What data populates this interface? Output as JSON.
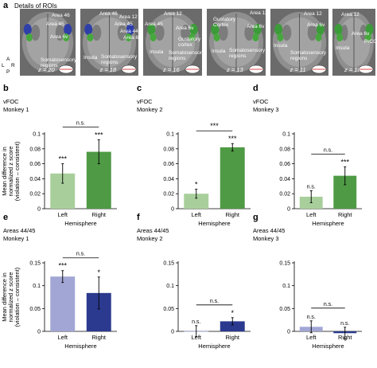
{
  "panel_a": {
    "letter": "a",
    "title": "Details of ROIs",
    "orientation": {
      "l": "L",
      "r": "R",
      "a": "A",
      "p": "P"
    },
    "tiles": [
      {
        "z": "z = 20",
        "labels": [
          "Area 46",
          "Area 45",
          "Area 6v",
          "Somatosensory regions"
        ]
      },
      {
        "z": "z = 18",
        "labels": [
          "Area 46",
          "Area 12",
          "Area 45",
          "Area 44",
          "Area 6v",
          "Insula",
          "Somatosensory regions"
        ]
      },
      {
        "z": "z = 16",
        "labels": [
          "Area 12",
          "Area 45",
          "Area 6v",
          "Gustatory cortex",
          "Insula",
          "Somatosensory regions"
        ]
      },
      {
        "z": "z = 13",
        "labels": [
          "Gustatory Cortex",
          "Area 12",
          "Area 6v",
          "Insula",
          "Somatosensory regions"
        ]
      },
      {
        "z": "z = 11",
        "labels": [
          "Area 12",
          "Area 6v",
          "Insula",
          "Somatosensory regions"
        ]
      },
      {
        "z": "z = 10",
        "labels": [
          "Area 12",
          "Area 6v",
          "PrCO",
          "Insula"
        ]
      }
    ]
  },
  "shared": {
    "ylabel_line1": "Mean difference in",
    "ylabel_line2": "normalized z score",
    "ylabel_line3": "(violation – consistent)",
    "xlabel": "Hemisphere"
  },
  "chart_data": [
    {
      "id": "b",
      "type": "bar",
      "panel_letter": "b",
      "region": "vFOC",
      "monkey": "Monkey 1",
      "categories": [
        "Left",
        "Right"
      ],
      "values": [
        0.047,
        0.076
      ],
      "errors": [
        0.013,
        0.016
      ],
      "ylim": [
        0,
        0.1
      ],
      "yticks": [
        "0",
        "0.02",
        "0.04",
        "0.06",
        "0.08",
        "0.1"
      ],
      "colors": [
        "#a8cf9b",
        "#4f9a45"
      ],
      "stars": [
        "***",
        "***"
      ],
      "comparison": "n.s."
    },
    {
      "id": "c",
      "type": "bar",
      "panel_letter": "c",
      "region": "vFOC",
      "monkey": "Monkey 2",
      "categories": [
        "Left",
        "Right"
      ],
      "values": [
        0.02,
        0.082
      ],
      "errors": [
        0.006,
        0.005
      ],
      "ylim": [
        0,
        0.1
      ],
      "yticks": [
        "0",
        "0.02",
        "0.04",
        "0.06",
        "0.08",
        "0.1"
      ],
      "colors": [
        "#a8cf9b",
        "#4f9a45"
      ],
      "stars": [
        "*",
        "***"
      ],
      "comparison": "***"
    },
    {
      "id": "d",
      "type": "bar",
      "panel_letter": "d",
      "region": "vFOC",
      "monkey": "Monkey 3",
      "categories": [
        "Left",
        "Right"
      ],
      "values": [
        0.016,
        0.044
      ],
      "errors": [
        0.008,
        0.012
      ],
      "ylim": [
        0,
        0.1
      ],
      "yticks": [
        "0",
        "0.02",
        "0.04",
        "0.06",
        "0.08",
        "0.1"
      ],
      "colors": [
        "#a8cf9b",
        "#4f9a45"
      ],
      "stars": [
        "n.s.",
        "***"
      ],
      "comparison": "n.s."
    },
    {
      "id": "e",
      "type": "bar",
      "panel_letter": "e",
      "region": "Areas 44/45",
      "monkey": "Monkey 1",
      "categories": [
        "Left",
        "Right"
      ],
      "values": [
        0.12,
        0.084
      ],
      "errors": [
        0.013,
        0.035
      ],
      "ylim": [
        0,
        0.15
      ],
      "yticks": [
        "0",
        "0.05",
        "0.1",
        "0.15"
      ],
      "colors": [
        "#a2a6d4",
        "#2b3a8f"
      ],
      "stars": [
        "***",
        "*"
      ],
      "comparison": "n.s."
    },
    {
      "id": "f",
      "type": "bar",
      "panel_letter": "f",
      "region": "Areas 44/45",
      "monkey": "Monkey 2",
      "categories": [
        "Left",
        "Right"
      ],
      "values": [
        0.0005,
        0.022
      ],
      "errors": [
        0.012,
        0.008
      ],
      "ylim": [
        0,
        0.15
      ],
      "yticks": [
        "0",
        "0.05",
        "0.1",
        "0.15"
      ],
      "colors": [
        "#a2a6d4",
        "#2b3a8f"
      ],
      "stars": [
        "n.s.",
        "*"
      ],
      "comparison": "n.s."
    },
    {
      "id": "g",
      "type": "bar",
      "panel_letter": "g",
      "region": "Areas 44/45",
      "monkey": "Monkey 3",
      "categories": [
        "Left",
        "Right"
      ],
      "values": [
        0.01,
        -0.004
      ],
      "errors": [
        0.013,
        0.013
      ],
      "ylim": [
        0,
        0.15
      ],
      "yticks": [
        "0",
        "0.05",
        "0.1",
        "0.15"
      ],
      "colors": [
        "#a2a6d4",
        "#2b3a8f"
      ],
      "stars": [
        "n.s.",
        "n.s."
      ],
      "comparison": "n.s."
    }
  ]
}
